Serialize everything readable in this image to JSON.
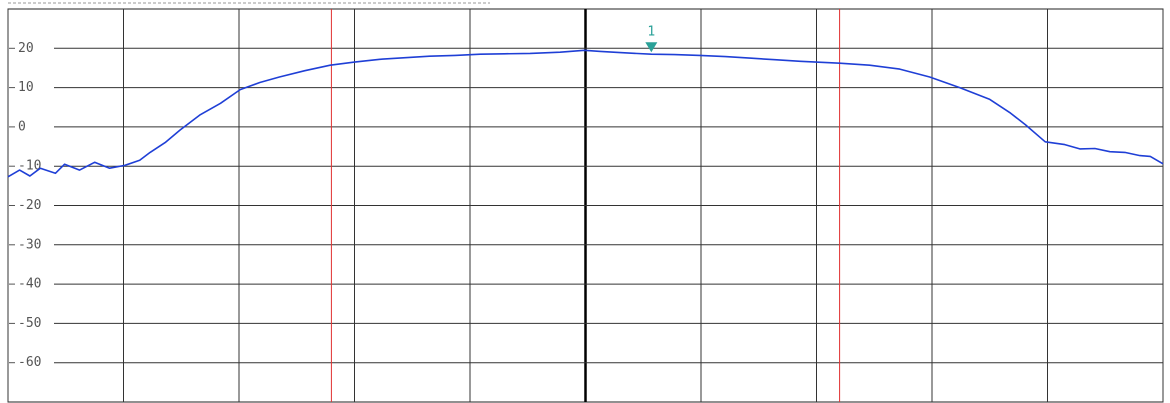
{
  "chart_data": {
    "type": "line",
    "xlim": [
      0,
      10
    ],
    "xticks": [
      0,
      1,
      2,
      3,
      4,
      5,
      6,
      7,
      8,
      9,
      10
    ],
    "ylim": [
      -70,
      30
    ],
    "yticks": [
      20,
      10,
      0,
      -10,
      -20,
      -30,
      -40,
      -50,
      -60
    ],
    "grid": true,
    "series": [
      {
        "color": "#1f3fd6",
        "x": [
          0,
          0.1,
          0.19,
          0.28,
          0.41,
          0.49,
          0.62,
          0.75,
          0.88,
          1.01,
          1.14,
          1.23,
          1.36,
          1.49,
          1.66,
          1.84,
          2.01,
          2.18,
          2.35,
          2.57,
          2.79,
          3.0,
          3.22,
          3.44,
          3.65,
          3.87,
          4.09,
          4.3,
          4.52,
          4.78,
          4.99,
          5.13,
          5.3,
          5.57,
          5.77,
          5.99,
          6.21,
          6.42,
          6.64,
          6.86,
          7.2,
          7.46,
          7.72,
          7.98,
          8.24,
          8.5,
          8.68,
          8.81,
          8.98,
          9.15,
          9.28,
          9.41,
          9.54,
          9.67,
          9.8,
          9.89,
          10
        ],
        "values": [
          -12.7,
          -11,
          -12.5,
          -10.5,
          -11.8,
          -9.5,
          -11,
          -9,
          -10.5,
          -9.8,
          -8.5,
          -6.5,
          -4,
          -0.8,
          3,
          6,
          9.5,
          11.3,
          12.7,
          14.3,
          15.7,
          16.5,
          17.2,
          17.6,
          18,
          18.2,
          18.5,
          18.6,
          18.7,
          19,
          19.5,
          19.2,
          18.9,
          18.5,
          18.4,
          18.2,
          17.9,
          17.5,
          17.1,
          16.7,
          16.2,
          15.7,
          14.7,
          12.7,
          10,
          7,
          3.5,
          0.5,
          -3.8,
          -4.5,
          -5.6,
          -5.5,
          -6.3,
          -6.5,
          -7.3,
          -7.5,
          -9.4
        ]
      }
    ],
    "vlines": {
      "color": "#e03030",
      "x": [
        2.8,
        7.2
      ]
    },
    "marker": {
      "label": "1",
      "x": 5.57,
      "y": 18.5,
      "color": "#2aa198"
    }
  }
}
